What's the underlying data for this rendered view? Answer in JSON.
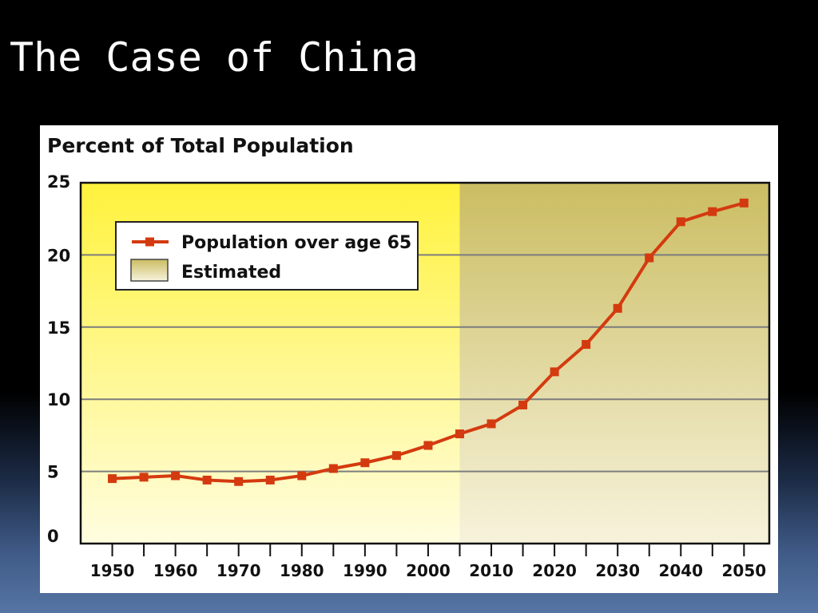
{
  "slide": {
    "title": "The Case of China"
  },
  "chart_data": {
    "type": "line",
    "title": "Percent of Total Population",
    "xlabel": "",
    "ylabel": "",
    "xlim": [
      1945,
      2054
    ],
    "ylim": [
      0,
      25
    ],
    "y_ticks": [
      0,
      5,
      10,
      15,
      20,
      25
    ],
    "x_ticks": [
      1950,
      1960,
      1970,
      1980,
      1990,
      2000,
      2010,
      2020,
      2030,
      2040,
      2050
    ],
    "x_minor_ticks": [
      1955,
      1965,
      1975,
      1985,
      1995,
      2005,
      2015,
      2025,
      2035,
      2045
    ],
    "grid": true,
    "legend_position": "top-left",
    "estimated_from": 2005,
    "colors": {
      "line": "#d43a0f",
      "actual_top": "#fff23c",
      "actual_bottom": "#fffde0",
      "estimated_top": "#cbbd62",
      "estimated_bottom": "#f7f3dc",
      "grid": "#7d7d7d"
    },
    "legend": {
      "series_label": "Population over age 65",
      "estimated_label": "Estimated"
    },
    "series": [
      {
        "name": "Population over age 65",
        "x": [
          1950,
          1955,
          1960,
          1965,
          1970,
          1975,
          1980,
          1985,
          1990,
          1995,
          2000,
          2005,
          2010,
          2015,
          2020,
          2025,
          2030,
          2035,
          2040,
          2045,
          2050
        ],
        "values": [
          4.5,
          4.6,
          4.7,
          4.4,
          4.3,
          4.4,
          4.7,
          5.2,
          5.6,
          6.1,
          6.8,
          7.6,
          8.3,
          9.6,
          11.9,
          13.8,
          16.3,
          19.8,
          22.3,
          23.0,
          23.6
        ]
      }
    ]
  }
}
